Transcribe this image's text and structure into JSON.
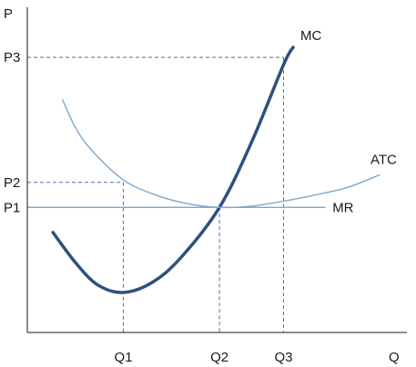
{
  "chart_data": {
    "type": "line",
    "title": "",
    "xlabel": "Q",
    "ylabel": "P",
    "x_ticks": [
      "Q1",
      "Q2",
      "Q3"
    ],
    "y_ticks": [
      "P1",
      "P2",
      "P3"
    ],
    "x_tick_values": [
      3,
      6,
      8
    ],
    "y_tick_values": [
      5,
      6,
      11
    ],
    "xlim": [
      0,
      11
    ],
    "ylim": [
      0,
      13
    ],
    "grid": false,
    "legend": "none",
    "series": [
      {
        "name": "MC",
        "color": "#2f4f7f",
        "x": [
          0.8,
          1.5,
          2.2,
          3.0,
          3.9,
          4.8,
          6.0,
          7.0,
          8.0,
          8.3
        ],
        "y": [
          4.0,
          2.8,
          1.9,
          1.6,
          2.0,
          3.0,
          5.0,
          7.6,
          10.7,
          11.4
        ]
      },
      {
        "name": "ATC",
        "color": "#7aa9cf",
        "x": [
          1.1,
          1.5,
          2.0,
          3.0,
          4.0,
          5.0,
          6.0,
          7.0,
          8.0,
          9.0,
          10.0,
          11.0
        ],
        "y": [
          9.3,
          8.2,
          7.3,
          6.1,
          5.5,
          5.15,
          5.0,
          5.05,
          5.25,
          5.5,
          5.8,
          6.3
        ]
      },
      {
        "name": "MR",
        "color": "#7aa9cf",
        "x": [
          0,
          9.3
        ],
        "y": [
          5,
          5
        ]
      }
    ],
    "guides": [
      {
        "name": "P3-Q3",
        "x": 8,
        "y": 11,
        "color": "#4a6fa5"
      },
      {
        "name": "P2-Q1",
        "x": 3,
        "y": 6,
        "color": "#4a6fa5"
      },
      {
        "name": "Q2",
        "x": 6,
        "y": 5,
        "color": "#4a6fa5"
      }
    ],
    "axis_color": "#1a1a1a"
  }
}
